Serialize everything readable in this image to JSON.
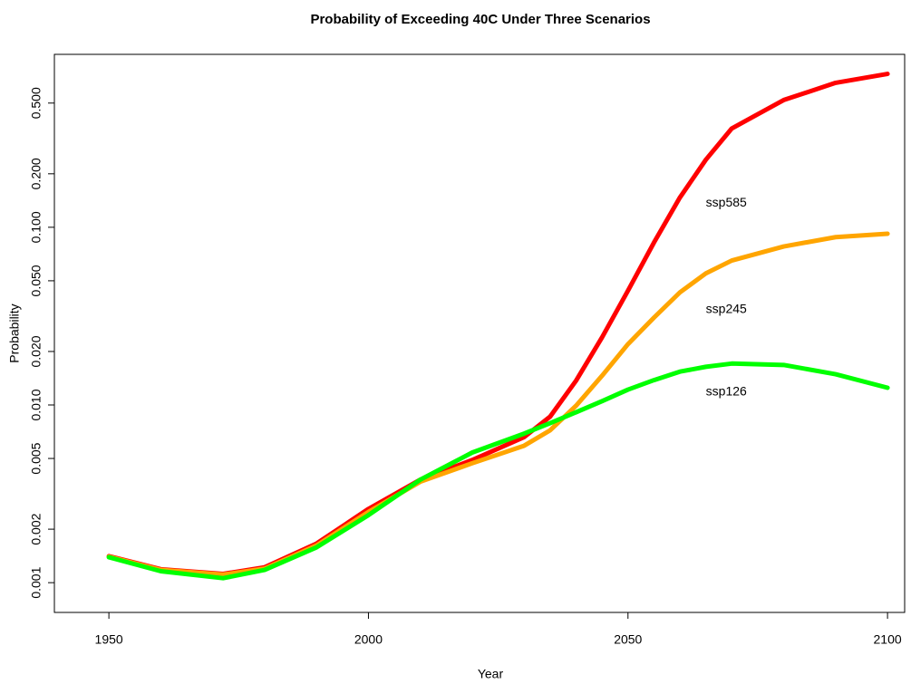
{
  "chart_data": {
    "type": "line",
    "title": "Probability of Exceeding 40C Under Three Scenarios",
    "x_label": "Year",
    "y_label": "Probability",
    "log_y": true,
    "x": [
      1950,
      1960,
      1972,
      1980,
      1990,
      2000,
      2010,
      2020,
      2030,
      2035,
      2040,
      2045,
      2050,
      2055,
      2060,
      2065,
      2070,
      2080,
      2090,
      2100
    ],
    "series": [
      {
        "name": "ssp585",
        "color": "#ff0000",
        "values": [
          0.00141,
          0.00119,
          0.00112,
          0.00122,
          0.00166,
          0.0026,
          0.0038,
          0.0049,
          0.0066,
          0.0086,
          0.0137,
          0.024,
          0.044,
          0.082,
          0.147,
          0.24,
          0.36,
          0.52,
          0.65,
          0.73
        ]
      },
      {
        "name": "ssp245",
        "color": "#ffa500",
        "values": [
          0.0014,
          0.00118,
          0.00111,
          0.0012,
          0.00162,
          0.0025,
          0.0037,
          0.0047,
          0.0059,
          0.0072,
          0.0099,
          0.0146,
          0.022,
          0.031,
          0.043,
          0.055,
          0.065,
          0.078,
          0.088,
          0.092
        ]
      },
      {
        "name": "ssp126",
        "color": "#00ff00",
        "values": [
          0.00139,
          0.00116,
          0.00106,
          0.00118,
          0.00158,
          0.0024,
          0.0038,
          0.0054,
          0.0069,
          0.0079,
          0.0091,
          0.0105,
          0.0122,
          0.0138,
          0.0154,
          0.0164,
          0.0171,
          0.0168,
          0.0149,
          0.0125
        ]
      }
    ],
    "annotations": [
      {
        "text": "ssp585",
        "x": 2065,
        "y": 0.137
      },
      {
        "text": "ssp245",
        "x": 2065,
        "y": 0.0344
      },
      {
        "text": "ssp126",
        "x": 2065,
        "y": 0.0118
      }
    ],
    "xlim": [
      1939.5,
      2103.3
    ],
    "xticks": [
      1950,
      2000,
      2050,
      2100
    ],
    "ylim": [
      0.00068,
      0.94
    ],
    "yticks": [
      0.001,
      0.002,
      0.005,
      {
        "value": 0.01,
        "label": "0.010"
      },
      {
        "value": 0.02,
        "label": "0.020"
      },
      {
        "value": 0.05,
        "label": "0.050"
      },
      {
        "value": 0.1,
        "label": "0.100"
      },
      {
        "value": 0.2,
        "label": "0.200"
      },
      {
        "value": 0.5,
        "label": "0.500"
      }
    ]
  }
}
